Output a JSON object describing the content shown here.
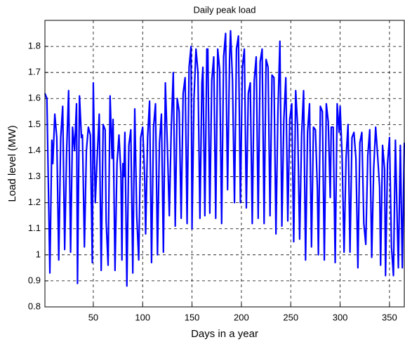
{
  "chart_data": {
    "type": "line",
    "title": "Daily peak load",
    "x_label": "Days in a year",
    "y_label": "Load level (MW)",
    "xlim": [
      1,
      365
    ],
    "ylim": [
      0.8,
      1.9
    ],
    "xticks": [
      50,
      100,
      150,
      200,
      250,
      300,
      350
    ],
    "yticks": [
      0.8,
      0.9,
      1,
      1.1,
      1.2,
      1.3,
      1.4,
      1.5,
      1.6,
      1.7,
      1.8
    ],
    "grid": true,
    "x": [
      1,
      3,
      6,
      8,
      9,
      11,
      13,
      15,
      17,
      19,
      21,
      23,
      25,
      27,
      29,
      31,
      33,
      34,
      36,
      38,
      39,
      41,
      43,
      45,
      47,
      49,
      50,
      52,
      54,
      56,
      58,
      60,
      62,
      63,
      65,
      67,
      69,
      70,
      72,
      74,
      76,
      78,
      79,
      80,
      81,
      82,
      84,
      86,
      88,
      90,
      92,
      94,
      96,
      98,
      100,
      102,
      103,
      105,
      107,
      109,
      111,
      113,
      115,
      117,
      119,
      121,
      123,
      125,
      127,
      129,
      131,
      133,
      135,
      137,
      139,
      141,
      143,
      145,
      147,
      149,
      150,
      152,
      154,
      156,
      158,
      160,
      161,
      163,
      165,
      166,
      168,
      170,
      172,
      174,
      176,
      178,
      180,
      182,
      184,
      186,
      188,
      189,
      191,
      193,
      195,
      197,
      199,
      201,
      203,
      205,
      207,
      209,
      211,
      213,
      215,
      217,
      219,
      221,
      223,
      225,
      227,
      229,
      231,
      233,
      235,
      237,
      239,
      241,
      243,
      245,
      247,
      249,
      251,
      253,
      255,
      257,
      259,
      261,
      263,
      265,
      267,
      269,
      271,
      273,
      275,
      277,
      278,
      280,
      282,
      284,
      286,
      288,
      290,
      291,
      293,
      295,
      297,
      299,
      300,
      302,
      304,
      306,
      308,
      310,
      312,
      314,
      316,
      318,
      320,
      322,
      324,
      326,
      328,
      330,
      332,
      334,
      336,
      338,
      340,
      341,
      343,
      345,
      346,
      348,
      350,
      352,
      354,
      356,
      358,
      359,
      361,
      363,
      365
    ],
    "series": [
      {
        "name": "Daily peak load",
        "color": "#0000ff",
        "values": [
          1.62,
          1.6,
          0.93,
          1.44,
          1.35,
          1.54,
          1.45,
          0.98,
          1.45,
          1.57,
          1.02,
          1.4,
          1.63,
          1.01,
          1.49,
          1.4,
          1.58,
          0.89,
          1.61,
          1.45,
          1.46,
          1.03,
          1.4,
          1.49,
          1.46,
          0.97,
          1.66,
          1.2,
          1.38,
          1.54,
          0.94,
          1.5,
          1.48,
          1.13,
          0.96,
          1.61,
          1.37,
          1.52,
          0.94,
          1.35,
          1.46,
          1.31,
          0.98,
          1.35,
          1.3,
          1.47,
          0.88,
          1.42,
          1.48,
          0.93,
          1.56,
          1.15,
          0.98,
          1.45,
          1.49,
          1.3,
          1.08,
          1.45,
          1.59,
          0.97,
          1.49,
          1.58,
          1.0,
          1.43,
          1.54,
          1.01,
          1.66,
          1.42,
          1.15,
          1.49,
          1.7,
          1.11,
          1.6,
          1.55,
          1.14,
          1.62,
          1.68,
          1.12,
          1.72,
          1.8,
          1.1,
          1.6,
          1.79,
          1.7,
          1.14,
          1.66,
          1.72,
          1.15,
          1.79,
          1.79,
          1.16,
          1.67,
          1.76,
          1.14,
          1.79,
          1.71,
          1.12,
          1.76,
          1.85,
          1.25,
          1.75,
          1.86,
          1.67,
          1.2,
          1.79,
          1.84,
          1.2,
          1.72,
          1.79,
          1.18,
          1.62,
          1.66,
          1.12,
          1.67,
          1.76,
          1.14,
          1.74,
          1.79,
          1.12,
          1.75,
          1.72,
          1.15,
          1.69,
          1.68,
          1.08,
          1.55,
          1.82,
          1.11,
          1.52,
          1.68,
          1.13,
          1.52,
          1.58,
          1.05,
          1.63,
          1.49,
          1.06,
          1.46,
          1.63,
          0.98,
          1.47,
          1.58,
          1.03,
          1.49,
          1.48,
          1.25,
          1.0,
          1.57,
          1.55,
          0.98,
          1.58,
          1.51,
          1.22,
          1.49,
          1.49,
          0.97,
          1.58,
          1.47,
          1.57,
          1.38,
          1.01,
          1.37,
          1.5,
          1.01,
          1.45,
          1.47,
          1.37,
          0.95,
          1.43,
          1.47,
          1.12,
          1.04,
          1.38,
          1.48,
          0.99,
          1.33,
          1.49,
          1.38,
          1.26,
          0.96,
          1.42,
          1.33,
          0.92,
          1.35,
          1.45,
          1.03,
          0.92,
          1.44,
          1.1,
          0.95,
          1.42,
          0.95,
          1.43
        ]
      }
    ]
  }
}
